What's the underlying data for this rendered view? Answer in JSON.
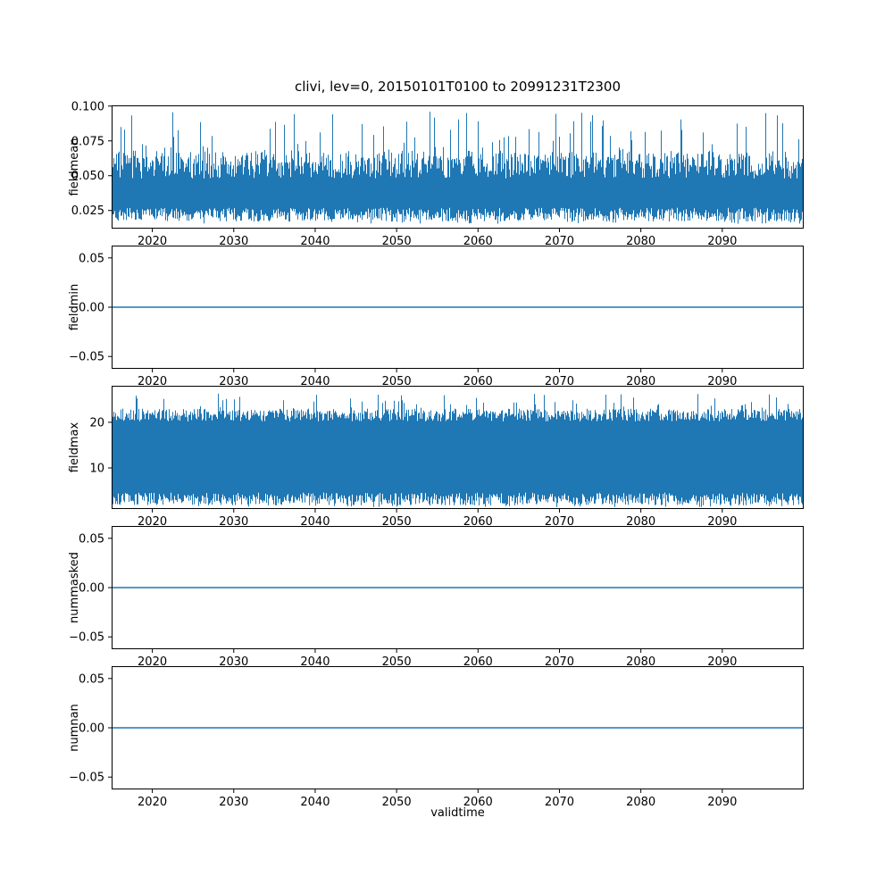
{
  "chart_data": {
    "type": "line",
    "title": "clivi, lev=0, 20150101T0100 to 20991231T2300",
    "xlabel": "validtime",
    "line_color": "#1f77b4",
    "x_range": [
      2015,
      2100
    ],
    "x_ticks": [
      {
        "v": 2020,
        "label": "2020"
      },
      {
        "v": 2030,
        "label": "2030"
      },
      {
        "v": 2040,
        "label": "2040"
      },
      {
        "v": 2050,
        "label": "2050"
      },
      {
        "v": 2060,
        "label": "2060"
      },
      {
        "v": 2070,
        "label": "2070"
      },
      {
        "v": 2080,
        "label": "2080"
      },
      {
        "v": 2090,
        "label": "2090"
      }
    ],
    "panels": [
      {
        "ylabel": "fieldmean",
        "type": "noisy_band",
        "ylim": [
          0.012,
          0.1005
        ],
        "yticks": [
          {
            "v": 0.1,
            "label": "0.100"
          },
          {
            "v": 0.075,
            "label": "0.075"
          },
          {
            "v": 0.05,
            "label": "0.050"
          },
          {
            "v": 0.025,
            "label": "0.025"
          }
        ],
        "seed": 7,
        "band": {
          "low_center": 0.022,
          "low_jitter": 0.005,
          "high_center": 0.058,
          "high_jitter": 0.01,
          "spike_up_prob": 0.12,
          "spike_up_max": 0.096,
          "spike_down_prob": 0.1,
          "spike_down_min": 0.0155
        },
        "summary": {
          "min": 0.015,
          "max": 0.098,
          "mean": 0.045
        }
      },
      {
        "ylabel": "fieldmin",
        "type": "flat",
        "value": 0.0,
        "ylim": [
          -0.0625,
          0.0625
        ],
        "yticks": [
          {
            "v": 0.05,
            "label": "0.05"
          },
          {
            "v": 0.0,
            "label": "0.00"
          },
          {
            "v": -0.05,
            "label": "−0.05"
          }
        ],
        "summary": {
          "min": 0,
          "max": 0,
          "mean": 0
        }
      },
      {
        "ylabel": "fieldmax",
        "type": "noisy_band",
        "ylim": [
          1,
          28
        ],
        "yticks": [
          {
            "v": 20,
            "label": "20"
          },
          {
            "v": 10,
            "label": "10"
          }
        ],
        "seed": 13,
        "band": {
          "low_center": 3.2,
          "low_jitter": 1.4,
          "high_center": 21.6,
          "high_jitter": 1.4,
          "spike_up_prob": 0.1,
          "spike_up_max": 26.3,
          "spike_down_prob": 0.12,
          "spike_down_min": 1.4
        },
        "summary": {
          "min": 1.5,
          "max": 26.5,
          "mean": 12
        }
      },
      {
        "ylabel": "nummasked",
        "type": "flat",
        "value": 0.0,
        "ylim": [
          -0.0625,
          0.0625
        ],
        "yticks": [
          {
            "v": 0.05,
            "label": "0.05"
          },
          {
            "v": 0.0,
            "label": "0.00"
          },
          {
            "v": -0.05,
            "label": "−0.05"
          }
        ],
        "summary": {
          "min": 0,
          "max": 0,
          "mean": 0
        }
      },
      {
        "ylabel": "numnan",
        "type": "flat",
        "value": 0.0,
        "ylim": [
          -0.0625,
          0.0625
        ],
        "yticks": [
          {
            "v": 0.05,
            "label": "0.05"
          },
          {
            "v": 0.0,
            "label": "0.00"
          },
          {
            "v": -0.05,
            "label": "−0.05"
          }
        ],
        "summary": {
          "min": 0,
          "max": 0,
          "mean": 0
        }
      }
    ]
  }
}
